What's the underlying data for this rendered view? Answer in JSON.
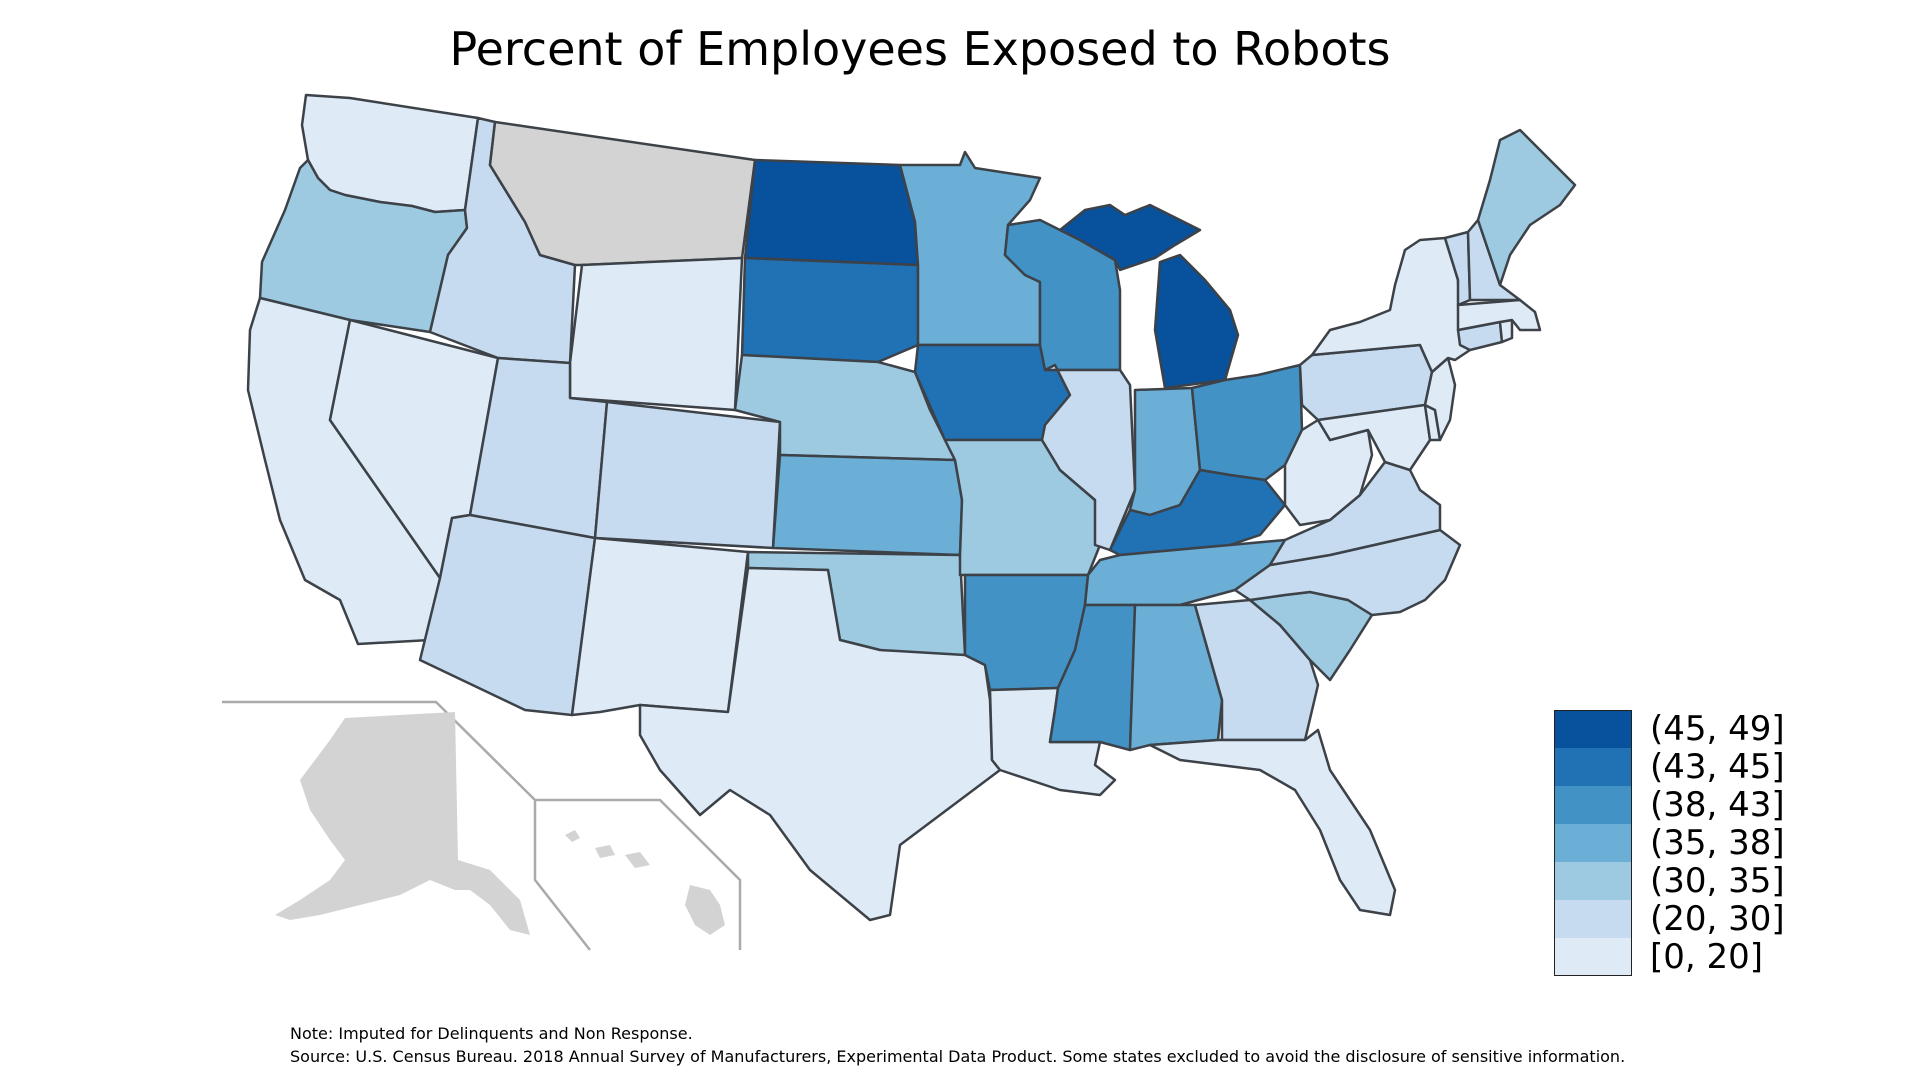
{
  "title": "Percent of Employees Exposed to Robots",
  "colors": {
    "(45, 49]": "#08519c",
    "(43, 45]": "#2171b5",
    "(38, 43]": "#4292c6",
    "(35, 38]": "#6baed6",
    "(30, 35]": "#9ecae1",
    "(20, 30]": "#c6dbef",
    "[0, 20]": "#deebf7",
    "excluded": "#d3d3d3"
  },
  "legend": {
    "items": [
      {
        "label": "(45, 49]",
        "color": "#08519c"
      },
      {
        "label": "(43, 45]",
        "color": "#2171b5"
      },
      {
        "label": "(38, 43]",
        "color": "#4292c6"
      },
      {
        "label": "(35, 38]",
        "color": "#6baed6"
      },
      {
        "label": "(30, 35]",
        "color": "#9ecae1"
      },
      {
        "label": "(20, 30]",
        "color": "#c6dbef"
      },
      {
        "label": "[0, 20]",
        "color": "#deebf7"
      }
    ]
  },
  "states": {
    "WA": "[0, 20]",
    "OR": "(30, 35]",
    "CA": "[0, 20]",
    "NV": "[0, 20]",
    "ID": "(20, 30]",
    "MT": "excluded",
    "WY": "[0, 20]",
    "UT": "(20, 30]",
    "AZ": "(20, 30]",
    "CO": "(20, 30]",
    "NM": "[0, 20]",
    "ND": "(45, 49]",
    "SD": "(43, 45]",
    "NE": "(30, 35]",
    "KS": "(35, 38]",
    "OK": "(30, 35]",
    "TX": "[0, 20]",
    "MN": "(35, 38]",
    "IA": "(43, 45]",
    "MO": "(30, 35]",
    "AR": "(38, 43]",
    "LA": "[0, 20]",
    "WI": "(38, 43]",
    "IL": "(20, 30]",
    "MI": "(45, 49]",
    "IN": "(35, 38]",
    "OH": "(38, 43]",
    "KY": "(43, 45]",
    "TN": "(35, 38]",
    "MS": "(38, 43]",
    "AL": "(35, 38]",
    "GA": "(20, 30]",
    "FL": "[0, 20]",
    "SC": "(30, 35]",
    "NC": "(20, 30]",
    "VA": "(20, 30]",
    "WV": "[0, 20]",
    "PA": "(20, 30]",
    "NY": "[0, 20]",
    "VT": "(20, 30]",
    "NH": "(20, 30]",
    "ME": "(30, 35]",
    "MA": "[0, 20]",
    "CT": "(20, 30]",
    "RI": "[0, 20]",
    "NJ": "[0, 20]",
    "DE": "[0, 20]",
    "MD": "[0, 20]",
    "AK": "excluded",
    "HI": "excluded"
  },
  "notes": {
    "note": "Note: Imputed for Delinquents and Non Response.",
    "source": "Source: U.S. Census Bureau. 2018 Annual Survey of Manufacturers, Experimental Data Product. Some states excluded to avoid the disclosure of sensitive information."
  }
}
